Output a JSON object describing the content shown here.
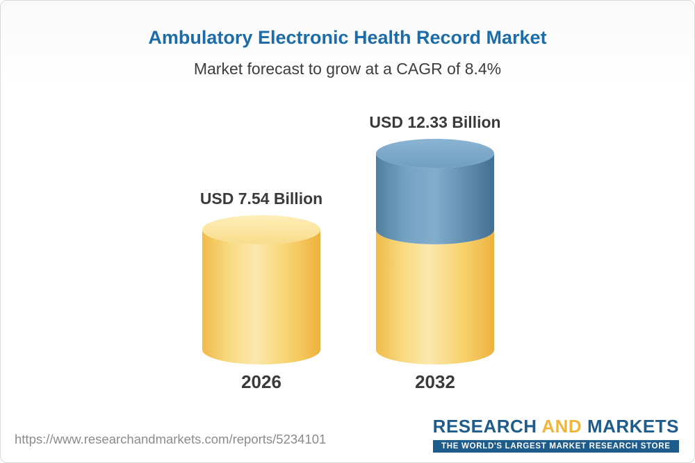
{
  "header": {
    "title": "Ambulatory Electronic Health Record Market",
    "subtitle": "Market forecast to grow at a CAGR of 8.4%"
  },
  "chart_data": {
    "type": "bar",
    "variant": "3d-cylinder",
    "unit": "USD Billion",
    "cagr_percent": 8.4,
    "categories": [
      "2026",
      "2032"
    ],
    "ylim": [
      0,
      12.33
    ],
    "grid": false,
    "legend": "none",
    "bars": [
      {
        "year": "2026",
        "total": 7.54,
        "value_label": "USD 7.54 Billion",
        "segments": [
          {
            "value": 7.54,
            "palette": "yellow"
          }
        ]
      },
      {
        "year": "2032",
        "total": 12.33,
        "value_label": "USD 12.33 Billion",
        "segments": [
          {
            "value": 7.54,
            "palette": "yellow"
          },
          {
            "value": 4.79,
            "palette": "blue"
          }
        ]
      }
    ]
  },
  "colors": {
    "title": "#1b6ca8",
    "text": "#3a3a3a",
    "yellow_dark": "#edb23f",
    "yellow_light": "#fbe8ad",
    "blue_dark": "#436f94",
    "blue_light": "#82aecd",
    "logo_blue": "#1e5c8c",
    "logo_yellow": "#f0b63c"
  },
  "footer": {
    "url": "https://www.researchandmarkets.com/reports/5234101",
    "logo": {
      "word1": "RESEARCH",
      "word2": "AND",
      "word3": "MARKETS",
      "tagline": "THE WORLD'S LARGEST MARKET RESEARCH STORE"
    }
  }
}
